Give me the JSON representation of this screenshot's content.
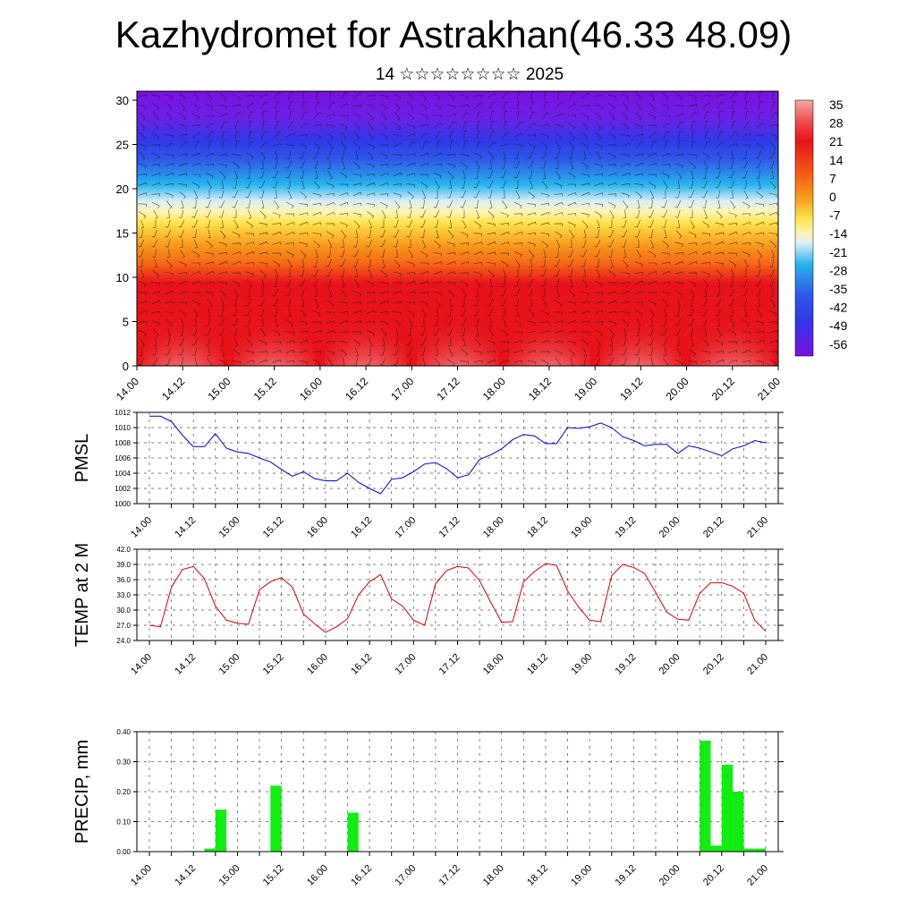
{
  "header": {
    "title": "Kazhydromet for Astrakhan(46.33 48.09)",
    "subtitle": "14 ☆☆☆☆☆☆☆☆ 2025"
  },
  "time_ticks": [
    "14.00",
    "14.12",
    "15.00",
    "15.12",
    "16.00",
    "16.12",
    "17.00",
    "17.12",
    "18.00",
    "18.12",
    "19.00",
    "19.12",
    "20.00",
    "20.12",
    "21.00"
  ],
  "chart_data": [
    {
      "type": "heatmap",
      "x": [
        0,
        12,
        24,
        36,
        48,
        60,
        72,
        84,
        96,
        108,
        120,
        132,
        144,
        156,
        168
      ],
      "x_tick_labels": [
        "14.00",
        "14.12",
        "15.00",
        "15.12",
        "16.00",
        "16.12",
        "17.00",
        "17.12",
        "18.00",
        "18.12",
        "19.00",
        "19.12",
        "20.00",
        "20.12",
        "21.00"
      ],
      "y_ticks": [
        0,
        5,
        10,
        15,
        20,
        25,
        30
      ],
      "ylim": [
        0,
        30
      ],
      "colorbar_labels": [
        "35",
        "28",
        "21",
        "14",
        "7",
        "0",
        "-7",
        "-14",
        "-21",
        "-28",
        "-35",
        "-42",
        "-49",
        "-56"
      ],
      "colors": {
        "cold": "#7b10e0",
        "blue": "#2f38e8",
        "cyan": "#27b4ee",
        "pale": "#d9eef8",
        "yellow": "#ffe24a",
        "orange": "#f79a1c",
        "red": "#e8121a",
        "warm": "#f5a6a6"
      },
      "wind_barbs": true
    },
    {
      "type": "line",
      "ylabel": "PMSL",
      "ylim": [
        1000,
        1012
      ],
      "y_ticks": [
        1000,
        1002,
        1004,
        1006,
        1008,
        1010,
        1012
      ],
      "series": [
        {
          "color": "#0000dd",
          "points": [
            [
              0,
              1011.5
            ],
            [
              3,
              1011.5
            ],
            [
              6,
              1010.8
            ],
            [
              9,
              1009
            ],
            [
              12,
              1007.5
            ],
            [
              15,
              1007.5
            ],
            [
              18,
              1009.2
            ],
            [
              21,
              1007.3
            ],
            [
              24,
              1006.8
            ],
            [
              27,
              1006.6
            ],
            [
              30,
              1006
            ],
            [
              33,
              1005.5
            ],
            [
              36,
              1004.5
            ],
            [
              39,
              1003.6
            ],
            [
              42,
              1004.2
            ],
            [
              45,
              1003.3
            ],
            [
              48,
              1003
            ],
            [
              51,
              1003
            ],
            [
              54,
              1004
            ],
            [
              57,
              1002.8
            ],
            [
              60,
              1002
            ],
            [
              63,
              1001.3
            ],
            [
              66,
              1003.2
            ],
            [
              69,
              1003.4
            ],
            [
              72,
              1004.2
            ],
            [
              75,
              1005.2
            ],
            [
              78,
              1005.4
            ],
            [
              81,
              1004.6
            ],
            [
              84,
              1003.4
            ],
            [
              87,
              1003.8
            ],
            [
              90,
              1005.8
            ],
            [
              93,
              1006.4
            ],
            [
              96,
              1007.2
            ],
            [
              99,
              1008.4
            ],
            [
              102,
              1009.1
            ],
            [
              105,
              1008.9
            ],
            [
              108,
              1007.9
            ],
            [
              111,
              1007.9
            ],
            [
              114,
              1010
            ],
            [
              117,
              1009.9
            ],
            [
              120,
              1010.1
            ],
            [
              123,
              1010.6
            ],
            [
              126,
              1010
            ],
            [
              129,
              1008.8
            ],
            [
              132,
              1008.3
            ],
            [
              135,
              1007.6
            ],
            [
              138,
              1007.8
            ],
            [
              141,
              1007.8
            ],
            [
              144,
              1006.6
            ],
            [
              147,
              1007.6
            ],
            [
              150,
              1007.3
            ],
            [
              153,
              1006.8
            ],
            [
              156,
              1006.3
            ],
            [
              159,
              1007.2
            ],
            [
              162,
              1007.6
            ],
            [
              165,
              1008.3
            ],
            [
              168,
              1008
            ]
          ]
        }
      ]
    },
    {
      "type": "line",
      "ylabel": "TEMP at 2 M",
      "ylim": [
        24,
        42
      ],
      "y_ticks": [
        "24.0",
        "27.0",
        "30.0",
        "33.0",
        "36.0",
        "39.0",
        "42.0"
      ],
      "series": [
        {
          "color": "#dd0000",
          "points": [
            [
              0,
              27
            ],
            [
              3,
              26.7
            ],
            [
              6,
              34.5
            ],
            [
              9,
              38
            ],
            [
              12,
              38.6
            ],
            [
              15,
              36.2
            ],
            [
              18,
              30.8
            ],
            [
              21,
              28
            ],
            [
              24,
              27.4
            ],
            [
              27,
              27.2
            ],
            [
              30,
              34
            ],
            [
              33,
              35.6
            ],
            [
              36,
              36.4
            ],
            [
              39,
              34.5
            ],
            [
              42,
              29.2
            ],
            [
              45,
              27.3
            ],
            [
              48,
              25.6
            ],
            [
              51,
              26.7
            ],
            [
              54,
              28.3
            ],
            [
              57,
              33
            ],
            [
              60,
              35.6
            ],
            [
              63,
              37
            ],
            [
              66,
              32.2
            ],
            [
              69,
              30.8
            ],
            [
              72,
              28
            ],
            [
              75,
              27
            ],
            [
              78,
              35.2
            ],
            [
              81,
              37.8
            ],
            [
              84,
              38.6
            ],
            [
              87,
              38.3
            ],
            [
              90,
              35.8
            ],
            [
              93,
              31.6
            ],
            [
              96,
              27.6
            ],
            [
              99,
              27.7
            ],
            [
              102,
              35.6
            ],
            [
              105,
              37.6
            ],
            [
              108,
              39.2
            ],
            [
              111,
              38.8
            ],
            [
              114,
              33.8
            ],
            [
              117,
              30.6
            ],
            [
              120,
              28
            ],
            [
              123,
              27.7
            ],
            [
              126,
              36.8
            ],
            [
              129,
              39
            ],
            [
              132,
              38.4
            ],
            [
              135,
              37.2
            ],
            [
              138,
              33.5
            ],
            [
              141,
              29.6
            ],
            [
              144,
              28.2
            ],
            [
              147,
              28
            ],
            [
              150,
              33.3
            ],
            [
              153,
              35.4
            ],
            [
              156,
              35.4
            ],
            [
              159,
              34.7
            ],
            [
              162,
              33.3
            ],
            [
              165,
              28
            ],
            [
              168,
              25.8
            ]
          ]
        }
      ]
    },
    {
      "type": "bar",
      "ylabel": "PRECIP, mm",
      "ylim": [
        0,
        0.4
      ],
      "y_ticks": [
        "0.00",
        "0.10",
        "0.20",
        "0.30",
        "0.40"
      ],
      "bar_color": "#11ee11",
      "bars": [
        [
          15,
          0.01
        ],
        [
          18,
          0.14
        ],
        [
          33,
          0.22
        ],
        [
          54,
          0.13
        ],
        [
          150,
          0.37
        ],
        [
          153,
          0.02
        ],
        [
          156,
          0.29
        ],
        [
          159,
          0.2
        ],
        [
          162,
          0.01
        ],
        [
          165,
          0.01
        ]
      ]
    }
  ]
}
